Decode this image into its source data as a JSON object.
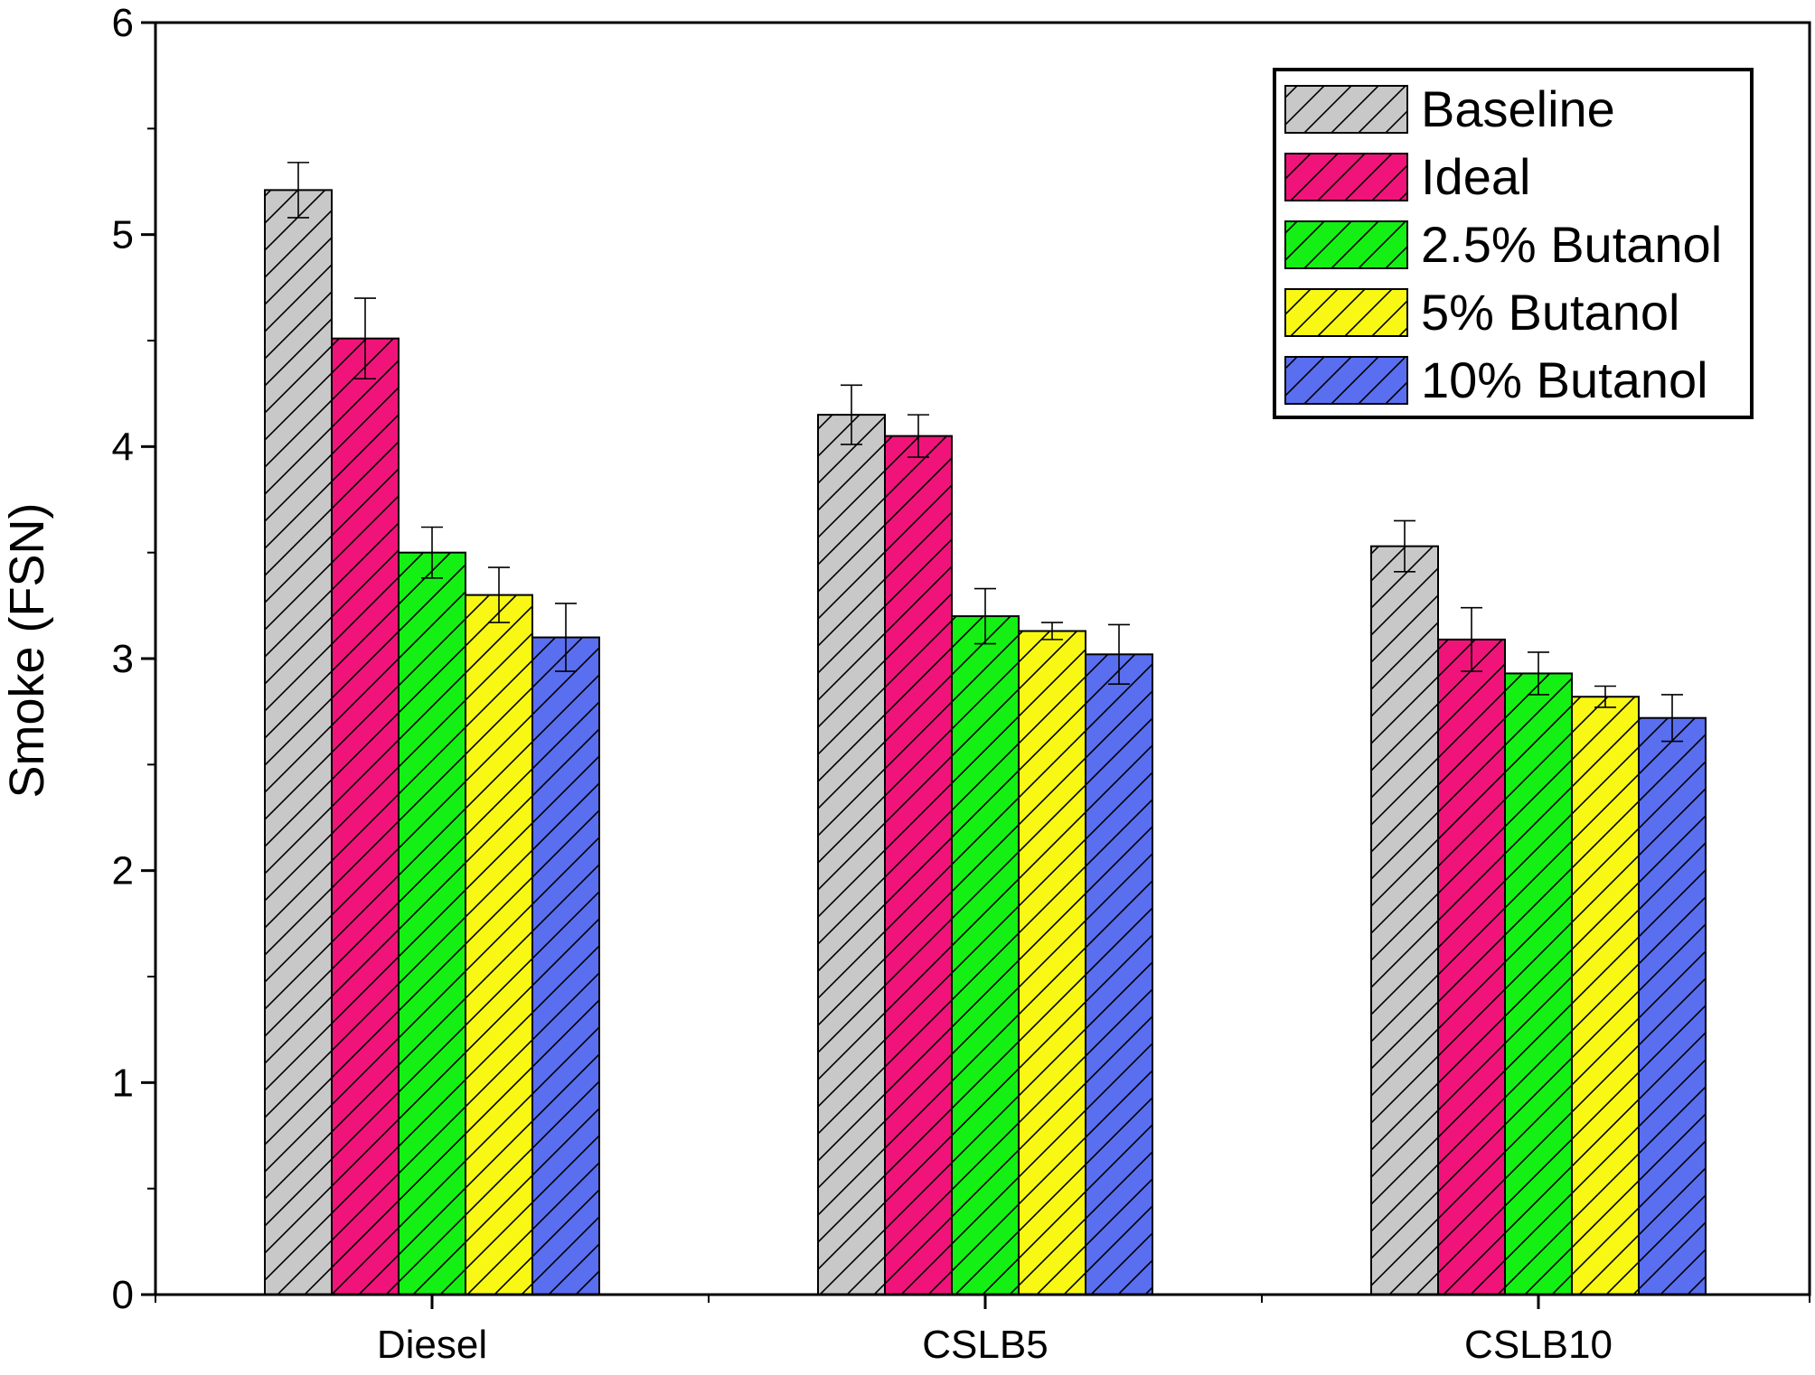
{
  "chart_data": {
    "type": "bar",
    "title": "",
    "xlabel": "",
    "ylabel": "Smoke (FSN)",
    "ylim": [
      0,
      6
    ],
    "yticks": [
      "0",
      "1",
      "2",
      "3",
      "4",
      "5",
      "6"
    ],
    "grid": false,
    "legend_position": "top-right",
    "bar_pattern": "diagonal-hatch",
    "categories": [
      "Diesel",
      "CSLB5",
      "CSLB10"
    ],
    "series": [
      {
        "name": "Baseline",
        "color": "#c8c8c8",
        "values": [
          5.21,
          4.15,
          3.53
        ],
        "errors": [
          0.13,
          0.14,
          0.12
        ]
      },
      {
        "name": "Ideal",
        "color": "#f0147a",
        "values": [
          4.51,
          4.05,
          3.09
        ],
        "errors": [
          0.19,
          0.1,
          0.15
        ]
      },
      {
        "name": "2.5% Butanol",
        "color": "#14f014",
        "values": [
          3.5,
          3.2,
          2.93
        ],
        "errors": [
          0.12,
          0.13,
          0.1
        ]
      },
      {
        "name": "5% Butanol",
        "color": "#f8f814",
        "values": [
          3.3,
          3.13,
          2.82
        ],
        "errors": [
          0.13,
          0.04,
          0.05
        ]
      },
      {
        "name": "10% Butanol",
        "color": "#5a6ef0",
        "values": [
          3.1,
          3.02,
          2.72
        ],
        "errors": [
          0.16,
          0.14,
          0.11
        ]
      }
    ]
  }
}
